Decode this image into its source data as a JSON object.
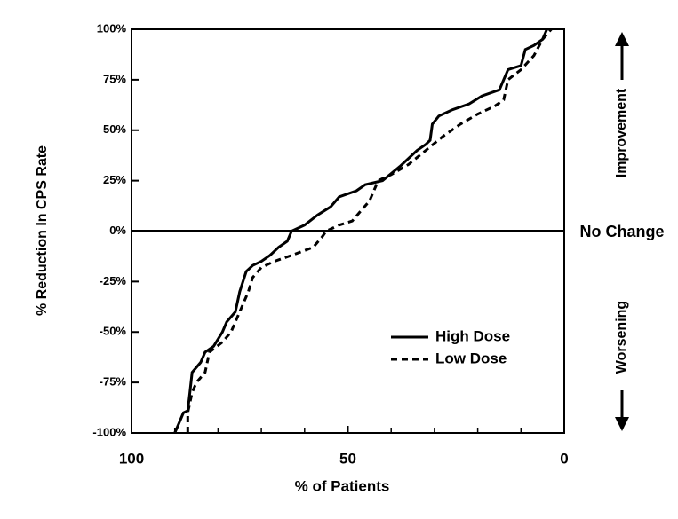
{
  "chart_data": {
    "type": "line",
    "xlabel": "% of Patients",
    "ylabel": "% Reduction In CPS Rate",
    "xlim": [
      100,
      0
    ],
    "xticks": [
      100,
      50,
      0
    ],
    "xminorticks": [
      90,
      80,
      70,
      60,
      40,
      30,
      20,
      10
    ],
    "ylim": [
      -100,
      100
    ],
    "yticks": [
      {
        "value": -100,
        "label": "-100%"
      },
      {
        "value": -75,
        "label": "-75%"
      },
      {
        "value": -50,
        "label": "-50%"
      },
      {
        "value": -25,
        "label": "-25%"
      },
      {
        "value": 0,
        "label": "0%"
      },
      {
        "value": 25,
        "label": "25%"
      },
      {
        "value": 50,
        "label": "50%"
      },
      {
        "value": 75,
        "label": "75%"
      },
      {
        "value": 100,
        "label": "100%"
      }
    ],
    "annotations": {
      "improvement": "Improvement",
      "no_change": "No Change",
      "worsening": "Worsening"
    },
    "legend": "lower right",
    "series": [
      {
        "name": "High Dose",
        "color": "#000000",
        "dash": "solid",
        "x": [
          90,
          89,
          88,
          87,
          86.5,
          86,
          84,
          83,
          81,
          79,
          78,
          76,
          75,
          73.5,
          72,
          70,
          68,
          66,
          64,
          63,
          60,
          57,
          54,
          52,
          48,
          46,
          42,
          38,
          34,
          32,
          31,
          30.5,
          29,
          26,
          22,
          19,
          15,
          14,
          13,
          10,
          9,
          7,
          5,
          4
        ],
        "values": [
          -100,
          -95,
          -90,
          -89,
          -80,
          -70,
          -65,
          -60,
          -57,
          -50,
          -45,
          -40,
          -30,
          -20,
          -17,
          -15,
          -12,
          -8,
          -5,
          0,
          3,
          8,
          12,
          17,
          20,
          23,
          25,
          32,
          40,
          43,
          45,
          53,
          57,
          60,
          63,
          67,
          70,
          75,
          80,
          82,
          90,
          92,
          95,
          100
        ]
      },
      {
        "name": "Low Dose",
        "color": "#000000",
        "dash": "dashed",
        "x": [
          87,
          87,
          86,
          85,
          83,
          82,
          79,
          77,
          75,
          73,
          72,
          70,
          67,
          63,
          58,
          56,
          55,
          52,
          49,
          47,
          45,
          44,
          43,
          40,
          36,
          32,
          28,
          24,
          20,
          16,
          14,
          13,
          10,
          7,
          5,
          3
        ],
        "values": [
          -100,
          -90,
          -80,
          -75,
          -70,
          -60,
          -55,
          -50,
          -40,
          -30,
          -23,
          -18,
          -15,
          -12,
          -8,
          -3,
          0,
          3,
          5,
          10,
          15,
          20,
          25,
          28,
          33,
          40,
          47,
          53,
          58,
          62,
          65,
          75,
          80,
          87,
          95,
          100
        ]
      }
    ]
  }
}
